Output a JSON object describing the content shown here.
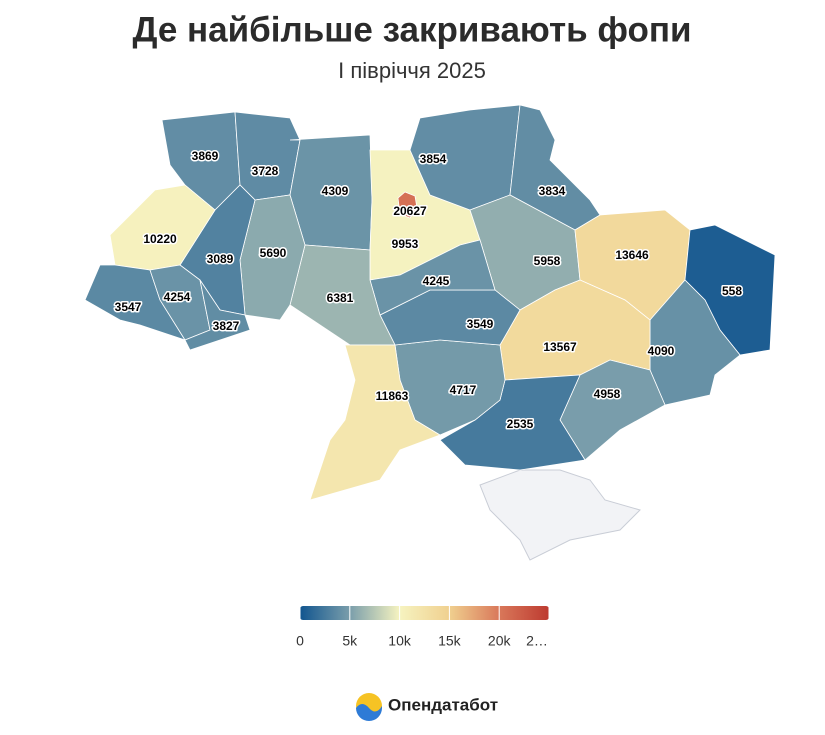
{
  "chart_data": {
    "type": "choropleth",
    "title": "Де найбільше закривають фопи",
    "subtitle": "I півріччя 2025",
    "values": [
      3869,
      3728,
      4309,
      9953,
      3854,
      3834,
      5958,
      13646,
      558,
      4090,
      13567,
      4958,
      2535,
      4717,
      3549,
      4245,
      6381,
      5690,
      3089,
      10220,
      3547,
      4254,
      3827,
      11863,
      20627
    ],
    "zlim": [
      0,
      25000
    ],
    "zticks": [
      0,
      {
        "value": 5000,
        "label": "5k"
      },
      {
        "value": 10000,
        "label": "10k"
      },
      {
        "value": 15000,
        "label": "15k"
      },
      {
        "value": 20000,
        "label": "20k"
      },
      {
        "value": 25000,
        "label": "2…"
      }
    ],
    "colorscale": [
      [
        0,
        "#11558f"
      ],
      [
        0.2,
        "#7a9eab"
      ],
      [
        0.4,
        "#f6f3c0"
      ],
      [
        0.6,
        "#f0d08f"
      ],
      [
        0.8,
        "#d9785a"
      ],
      [
        1,
        "#bd3a30"
      ]
    ],
    "missing_color": "#f2f3f6",
    "brand": "Опендатабот"
  }
}
